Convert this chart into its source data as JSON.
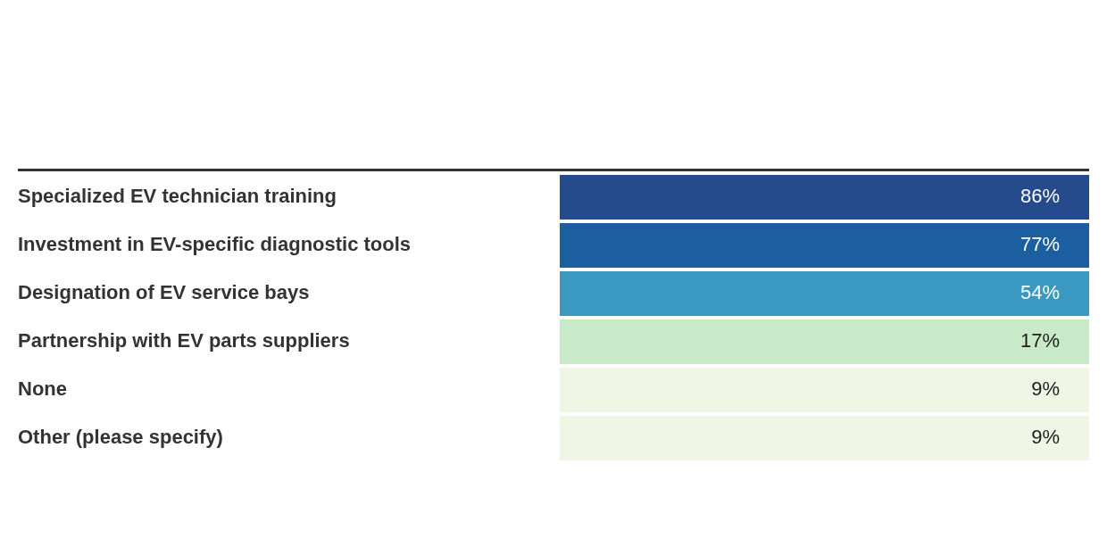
{
  "chart_data": {
    "type": "heatmap",
    "categories": [
      null
    ],
    "y_categories": [
      "Specialized EV technician training",
      "Investment in EV-specific diagnostic tools",
      "Designation of EV service bays",
      "Partnership with EV parts suppliers",
      "None",
      "Other (please specify)"
    ],
    "cells": [
      [
        86
      ],
      [
        77
      ],
      [
        54
      ],
      [
        17
      ],
      [
        9
      ],
      [
        9
      ]
    ],
    "cell_labels": [
      [
        "86%"
      ],
      [
        "77%"
      ],
      [
        "54%"
      ],
      [
        "17%"
      ],
      [
        "9%"
      ],
      [
        "9%"
      ]
    ],
    "colors": [
      "#254b8c",
      "#1c5fa0",
      "#3a98c1",
      "#c8eac8",
      "#f0f5e6",
      "#f0f5e6"
    ]
  }
}
